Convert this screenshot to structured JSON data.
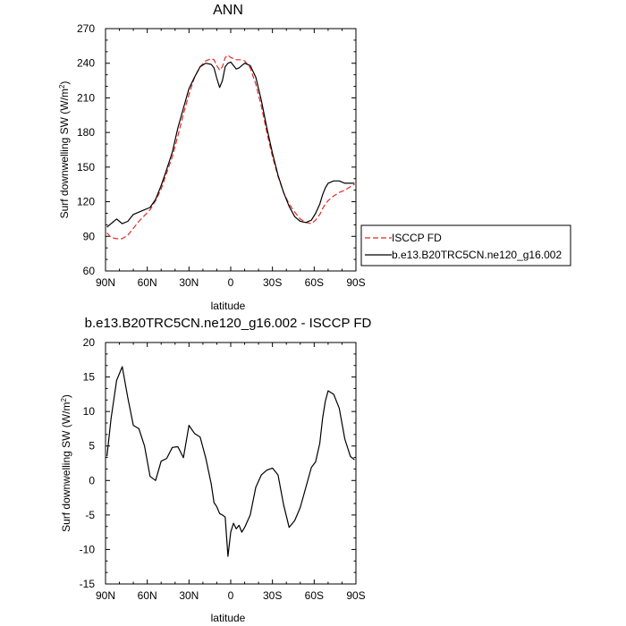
{
  "chart_data": [
    {
      "type": "line",
      "title": "ANN",
      "xlabel": "latitude",
      "ylabel_main": "Surf downwelling SW (W/m",
      "ylabel_sup": "2",
      "ylabel_close": ")",
      "xlim": [
        90,
        -90
      ],
      "ylim": [
        60,
        270
      ],
      "x_ticks": [
        90,
        60,
        30,
        0,
        -30,
        -60,
        -90
      ],
      "x_tick_labels": [
        "90N",
        "60N",
        "30N",
        "0",
        "30S",
        "60S",
        "90S"
      ],
      "y_ticks": [
        60,
        90,
        120,
        150,
        180,
        210,
        240,
        270
      ],
      "y_tick_labels": [
        "60",
        "90",
        "120",
        "150",
        "180",
        "210",
        "240",
        "270"
      ],
      "legend_position": "right",
      "series": [
        {
          "name": "ISCCP FD",
          "color": "#e8271f",
          "dash": "dashed",
          "x": [
            89,
            86,
            82,
            78,
            74,
            70,
            66,
            62,
            58,
            54,
            50,
            46,
            42,
            38,
            34,
            30,
            26,
            22,
            18,
            14,
            12,
            10,
            8,
            6,
            4,
            2,
            0,
            -2,
            -4,
            -6,
            -8,
            -10,
            -14,
            -18,
            -22,
            -26,
            -30,
            -34,
            -38,
            -42,
            -46,
            -50,
            -54,
            -58,
            -61,
            -64,
            -66,
            -68,
            -70,
            -74,
            -78,
            -82,
            -86,
            -89
          ],
          "y": [
            93,
            89,
            88,
            88,
            91,
            97,
            103,
            108,
            113,
            121,
            131,
            145,
            159,
            177,
            196,
            213,
            228,
            237,
            242,
            244,
            243,
            238,
            234,
            237,
            245,
            247,
            245,
            244,
            243,
            243,
            243,
            242,
            236,
            222,
            203,
            180,
            159,
            142,
            128,
            118,
            111,
            105,
            102,
            101,
            104,
            109,
            114,
            118,
            121,
            125,
            128,
            130,
            133,
            135
          ]
        },
        {
          "name": "b.e13.B20TRC5CN.ne120_g16.002",
          "color": "#000000",
          "dash": "solid",
          "x": [
            89,
            86,
            82,
            78,
            74,
            70,
            66,
            62,
            58,
            54,
            50,
            46,
            42,
            38,
            34,
            30,
            26,
            22,
            18,
            14,
            12,
            10,
            8,
            6,
            4,
            2,
            0,
            -2,
            -4,
            -6,
            -8,
            -10,
            -14,
            -18,
            -22,
            -26,
            -30,
            -34,
            -38,
            -42,
            -46,
            -50,
            -54,
            -58,
            -61,
            -64,
            -66,
            -68,
            -70,
            -74,
            -78,
            -82,
            -86,
            -89
          ],
          "y": [
            98,
            101,
            105,
            101,
            103,
            109,
            111,
            113,
            115,
            122,
            134,
            148,
            163,
            184,
            201,
            218,
            228,
            237,
            240,
            239,
            236,
            227,
            219,
            225,
            237,
            240,
            241,
            238,
            235,
            236,
            238,
            240,
            238,
            228,
            208,
            184,
            162,
            143,
            128,
            116,
            107,
            103,
            102,
            104,
            110,
            118,
            126,
            132,
            136,
            138,
            138,
            136,
            136,
            136
          ]
        }
      ]
    },
    {
      "type": "line",
      "title": "b.e13.B20TRC5CN.ne120_g16.002 - ISCCP FD",
      "xlabel": "latitude",
      "ylabel_main": "Surf downwelling SW (W/m",
      "ylabel_sup": "2",
      "ylabel_close": ")",
      "xlim": [
        90,
        -90
      ],
      "ylim": [
        -15,
        20
      ],
      "x_ticks": [
        90,
        60,
        30,
        0,
        -30,
        -60,
        -90
      ],
      "x_tick_labels": [
        "90N",
        "60N",
        "30N",
        "0",
        "30S",
        "60S",
        "90S"
      ],
      "y_ticks": [
        -15,
        -10,
        -5,
        0,
        5,
        10,
        15,
        20
      ],
      "y_tick_labels": [
        "-15",
        "-10",
        "-5",
        "0",
        "5",
        "10",
        "15",
        "20"
      ],
      "series": [
        {
          "color": "#000000",
          "dash": "solid",
          "x": [
            89,
            86,
            82,
            78,
            74,
            70,
            66,
            62,
            58,
            54,
            50,
            46,
            42,
            38,
            34,
            30,
            26,
            22,
            18,
            14,
            12,
            10,
            8,
            6,
            4,
            2,
            0,
            -2,
            -4,
            -6,
            -8,
            -10,
            -14,
            -18,
            -22,
            -26,
            -30,
            -34,
            -38,
            -42,
            -46,
            -50,
            -54,
            -58,
            -61,
            -64,
            -66,
            -68,
            -70,
            -74,
            -78,
            -82,
            -86,
            -89
          ],
          "y": [
            3.5,
            9.0,
            14.5,
            16.5,
            12.0,
            8.0,
            7.5,
            5.0,
            0.6,
            0.0,
            2.8,
            3.2,
            4.8,
            4.9,
            3.3,
            8.0,
            6.8,
            6.3,
            3.3,
            -0.5,
            -3.2,
            -3.8,
            -4.8,
            -5.0,
            -5.3,
            -11.0,
            -7.5,
            -6.2,
            -7.0,
            -6.5,
            -7.5,
            -6.8,
            -5.0,
            -1.0,
            0.8,
            1.5,
            1.8,
            0.8,
            -3.5,
            -6.8,
            -5.8,
            -3.9,
            -1.0,
            1.9,
            2.7,
            5.4,
            9.0,
            11.5,
            13.0,
            12.5,
            10.5,
            6.0,
            3.5,
            3.0
          ]
        }
      ]
    }
  ]
}
